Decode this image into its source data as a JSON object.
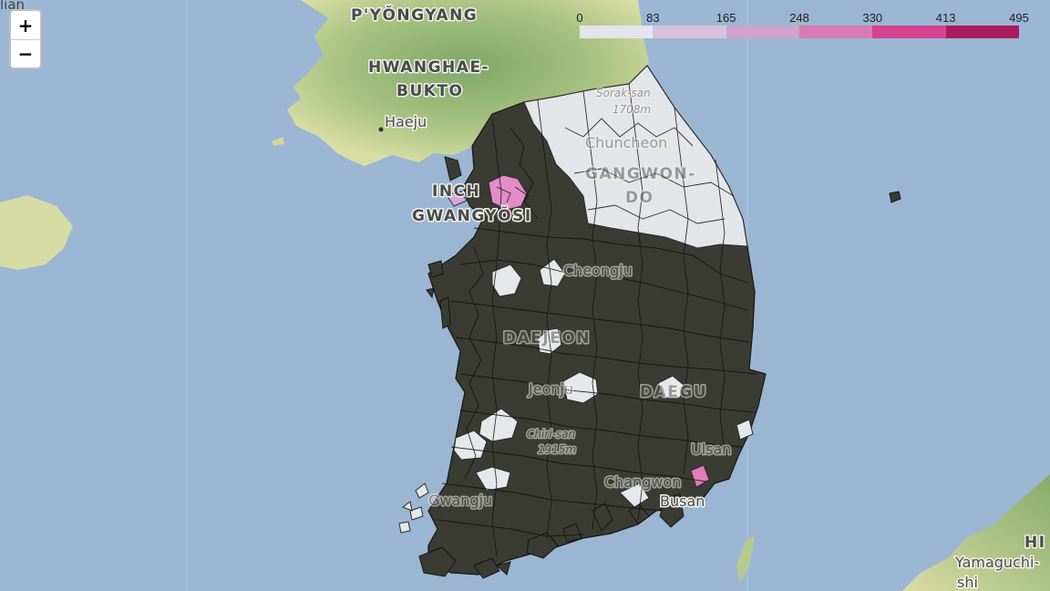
{
  "map": {
    "labels": {
      "pyongyang": "P'YŎNGYANG",
      "hwanghae_1": "HWANGHAE-",
      "hwanghae_2": "BUKTO",
      "haeju": "Haeju",
      "incheon_1": "INCH",
      "incheon_2": "GWANGYŎSI",
      "sorak": "Sorak-san",
      "sorak_elev": "1708m",
      "chuncheon": "Chuncheon",
      "gangwon_1": "GANGWON-",
      "gangwon_2": "DO",
      "cheongju": "Cheongju",
      "daejeon": "DAEJEON",
      "jeonju": "Jeonju",
      "daegu": "DAEGU",
      "chiri": "Chiri-san",
      "chiri_elev": "1915m",
      "ulsan": "Ulsan",
      "changwon": "Changwon",
      "busan": "Busan",
      "gwangju": "Gwangju",
      "yamaguchi_1": "Yamaguchi-",
      "yamaguchi_2": "shi",
      "hiroshima_part": "HI",
      "top_left_cut": "lian"
    }
  },
  "zoom": {
    "in": "+",
    "out": "−"
  },
  "legend": {
    "ticks": [
      "0",
      "83",
      "165",
      "248",
      "330",
      "413",
      "495"
    ],
    "colors": [
      "#e3e4ec",
      "#d7c1dc",
      "#cfa2cf",
      "#d579b7",
      "#d4418f",
      "#a81c5c"
    ]
  },
  "colors": {
    "sea": "#9bb6d3",
    "land_low": "#c9d79a",
    "land_high": "#8fb071",
    "district_dark": "#3a3c33",
    "district_light": "#e4e5e8",
    "district_pink": "#e48cc8"
  }
}
